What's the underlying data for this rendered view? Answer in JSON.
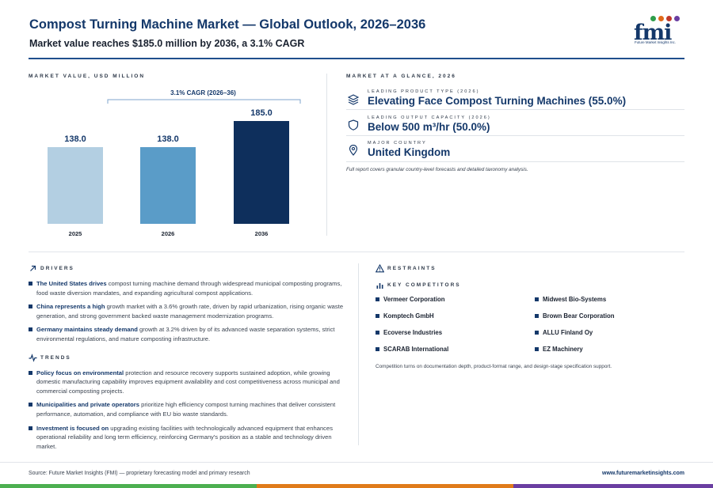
{
  "header": {
    "title": "Compost Turning Machine Market — Global Outlook, 2026–2036",
    "subtitle": "Market value reaches $185.0 million by 2036, a 3.1% CAGR"
  },
  "logo": {
    "text": "fmi",
    "tagline": "Future Market Insights Inc.",
    "dot_colors": [
      "#2e9e4a",
      "#e06a1a",
      "#c0392b",
      "#6a3ea1"
    ]
  },
  "chart_section": {
    "label": "MARKET VALUE, USD MILLION"
  },
  "chart_data": {
    "type": "bar",
    "title": "",
    "xlabel": "",
    "ylabel": "USD Million",
    "categories": [
      "2025",
      "2026",
      "2036"
    ],
    "values": [
      138.0,
      138.0,
      185.0
    ],
    "data_labels": [
      "138.0",
      "138.0",
      "185.0"
    ],
    "bar_colors": [
      "#b3cfe2",
      "#5a9cc8",
      "#0e2f5c"
    ],
    "annotation": "3.1% CAGR (2026–36)",
    "ylim": [
      0,
      200
    ],
    "grid": false
  },
  "glance": {
    "label": "MARKET AT A GLANCE, 2026",
    "items": [
      {
        "small": "LEADING PRODUCT TYPE (2026)",
        "big": "Elevating Face Compost Turning Machines (55.0%)",
        "icon": "layers-icon"
      },
      {
        "small": "LEADING OUTPUT CAPACITY (2026)",
        "big": "Below 500 m³/hr (50.0%)",
        "icon": "shield-icon"
      },
      {
        "small": "MAJOR COUNTRY",
        "big": "United Kingdom",
        "icon": "location-pin-icon"
      }
    ],
    "note": "Full report covers granular country-level forecasts and detailed taxonomy analysis."
  },
  "drivers": {
    "label": "DRIVERS",
    "items": [
      {
        "bold": "The United States drives",
        "text": " compost turning machine demand through widespread municipal composting programs, food waste diversion mandates, and expanding agricultural compost applications."
      },
      {
        "bold": "China represents a high",
        "text": " growth market with a 3.6% growth rate, driven by rapid urbanization, rising organic waste generation, and strong government backed waste management modernization programs."
      },
      {
        "bold": "Germany maintains steady demand",
        "text": " growth at 3.2% driven by of its advanced waste separation systems, strict environmental regulations, and mature composting infrastructure."
      }
    ]
  },
  "trends": {
    "label": "TRENDS",
    "items": [
      {
        "bold": "Policy focus on environmental",
        "text": " protection and resource recovery supports sustained adoption, while growing domestic manufacturing capability improves equipment availability and cost competitiveness across municipal and commercial composting projects."
      },
      {
        "bold": "Municipalities and private operators",
        "text": " prioritize high efficiency compost turning machines that deliver consistent performance, automation, and compliance with EU bio waste standards."
      },
      {
        "bold": "Investment is focused on",
        "text": " upgrading existing facilities with technologically advanced equipment that enhances operational reliability and long term efficiency, reinforcing Germany's position as a stable and technology driven market."
      }
    ]
  },
  "restraints": {
    "label": "RESTRAINTS"
  },
  "competitors": {
    "label": "KEY COMPETITORS",
    "items": [
      "Vermeer Corporation",
      "Midwest Bio-Systems",
      "Komptech GmbH",
      "Brown Bear Corporation",
      "Ecoverse Industries",
      "ALLU Finland Oy",
      "SCARAB International",
      "EZ Machinery"
    ],
    "note": "Competition turns on documentation depth, product-format range, and design-stage specification support."
  },
  "footer": {
    "source": "Source: Future Market Insights (FMI) — proprietary forecasting model and primary research",
    "url": "www.futuremarketinsights.com",
    "bar_colors": [
      "#4caf50",
      "#e07b1a",
      "#6a3ea1"
    ]
  }
}
